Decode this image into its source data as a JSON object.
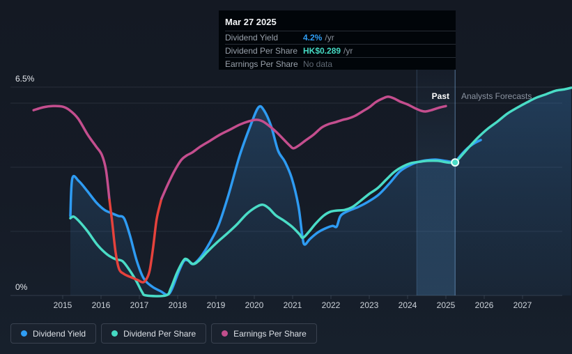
{
  "tooltip": {
    "date": "Mar 27 2025",
    "rows": [
      {
        "label": "Dividend Yield",
        "value": "4.2%",
        "unit": "/yr",
        "color_key": "blue"
      },
      {
        "label": "Dividend Per Share",
        "value": "HK$0.289",
        "unit": "/yr",
        "color_key": "teal"
      },
      {
        "label": "Earnings Per Share",
        "value": "No data",
        "unit": "",
        "color_key": "muted"
      }
    ]
  },
  "zones": {
    "past": "Past",
    "forecast": "Analysts Forecasts"
  },
  "legend": [
    {
      "label": "Dividend Yield",
      "color": "#2f9df3"
    },
    {
      "label": "Dividend Per Share",
      "color": "#45d9c2"
    },
    {
      "label": "Earnings Per Share",
      "color": "#c14e8c"
    }
  ],
  "colors": {
    "dividend_yield": "#2e9bf2",
    "dividend_per_share": "#4adcc6",
    "earnings_per_share": "#c44e8e",
    "earnings_negative": "#e5423c",
    "gridline": "rgba(148,166,190,0.14)",
    "axis_line": "rgba(148,166,190,0.22)",
    "divider": "rgba(130,180,230,0.6)",
    "band_edge": "rgba(120,170,220,0.25)",
    "marker_fill": "#4adcc6",
    "marker_ring": "#eafff9"
  },
  "chart_data": {
    "type": "line",
    "title": "Dividend history and forecast",
    "y_axis": {
      "max_label": "6.5%",
      "min_label": "0%",
      "unit": "percent",
      "range": [
        0,
        6.5
      ]
    },
    "gridlines_pct": [
      6.5,
      6,
      4,
      2,
      0
    ],
    "x_tick_labels": [
      "2015",
      "2016",
      "2017",
      "2018",
      "2019",
      "2020",
      "2021",
      "2022",
      "2023",
      "2024",
      "2025",
      "2026",
      "2027"
    ],
    "x_range_years": [
      2013.6,
      2028.3
    ],
    "highlight_band": {
      "from_year": 2024.24,
      "to_year": 2025.24
    },
    "divider_year": 2025.24,
    "marker": {
      "year": 2025.24,
      "value_pct": 4.15,
      "date": "Mar 27 2025",
      "dividend_yield": "4.2% /yr",
      "dividend_per_share": "HK$0.289 /yr",
      "earnings_per_share": "No data"
    },
    "note": "Earnings Per Share series is drawn on an unlabeled scale; its values below are display-axis units. Red segment = period of negative earnings.",
    "series": [
      {
        "id": "dividend_yield_past",
        "name": "Dividend Yield (past)",
        "color_key": "dividend_yield",
        "points": [
          [
            2015.2,
            2.48
          ],
          [
            2015.25,
            3.65
          ],
          [
            2015.42,
            3.57
          ],
          [
            2015.64,
            3.26
          ],
          [
            2015.87,
            2.91
          ],
          [
            2016.09,
            2.67
          ],
          [
            2016.27,
            2.57
          ],
          [
            2016.45,
            2.48
          ],
          [
            2016.6,
            2.41
          ],
          [
            2016.75,
            1.89
          ],
          [
            2016.93,
            1.09
          ],
          [
            2017.11,
            0.54
          ],
          [
            2017.33,
            0.28
          ],
          [
            2017.56,
            0.13
          ],
          [
            2017.73,
            0.02
          ],
          [
            2017.85,
            0.2
          ],
          [
            2018.02,
            0.72
          ],
          [
            2018.16,
            1.07
          ],
          [
            2018.27,
            1.09
          ],
          [
            2018.4,
            0.98
          ],
          [
            2018.6,
            1.2
          ],
          [
            2018.84,
            1.65
          ],
          [
            2019.07,
            2.2
          ],
          [
            2019.33,
            3.15
          ],
          [
            2019.62,
            4.37
          ],
          [
            2019.91,
            5.33
          ],
          [
            2020.11,
            5.87
          ],
          [
            2020.25,
            5.78
          ],
          [
            2020.44,
            5.28
          ],
          [
            2020.62,
            4.52
          ],
          [
            2020.8,
            4.17
          ],
          [
            2020.98,
            3.65
          ],
          [
            2021.15,
            2.8
          ],
          [
            2021.25,
            1.89
          ],
          [
            2021.31,
            1.59
          ],
          [
            2021.45,
            1.76
          ],
          [
            2021.65,
            1.96
          ],
          [
            2021.85,
            2.09
          ],
          [
            2022.04,
            2.17
          ],
          [
            2022.15,
            2.15
          ],
          [
            2022.25,
            2.48
          ],
          [
            2022.44,
            2.63
          ],
          [
            2022.71,
            2.76
          ],
          [
            2022.98,
            2.93
          ],
          [
            2023.25,
            3.15
          ],
          [
            2023.53,
            3.5
          ],
          [
            2023.8,
            3.87
          ],
          [
            2024.07,
            4.07
          ],
          [
            2024.29,
            4.17
          ],
          [
            2024.51,
            4.22
          ],
          [
            2024.73,
            4.24
          ],
          [
            2024.98,
            4.2
          ],
          [
            2025.24,
            4.15
          ]
        ]
      },
      {
        "id": "dividend_yield_forecast",
        "name": "Dividend Yield (forecast)",
        "color_key": "dividend_yield",
        "points": [
          [
            2025.24,
            4.15
          ],
          [
            2025.4,
            4.39
          ],
          [
            2025.58,
            4.61
          ],
          [
            2025.76,
            4.76
          ],
          [
            2025.91,
            4.85
          ]
        ]
      },
      {
        "id": "dividend_per_share_past",
        "name": "Dividend Per Share (past)",
        "color_key": "dividend_per_share",
        "points": [
          [
            2015.2,
            2.41
          ],
          [
            2015.29,
            2.46
          ],
          [
            2015.44,
            2.3
          ],
          [
            2015.65,
            2.0
          ],
          [
            2015.91,
            1.57
          ],
          [
            2016.16,
            1.28
          ],
          [
            2016.38,
            1.13
          ],
          [
            2016.56,
            1.07
          ],
          [
            2016.75,
            0.78
          ],
          [
            2016.93,
            0.43
          ],
          [
            2017.07,
            0.11
          ],
          [
            2017.18,
            0.0
          ],
          [
            2017.69,
            0.0
          ],
          [
            2017.82,
            0.22
          ],
          [
            2017.98,
            0.7
          ],
          [
            2018.15,
            1.09
          ],
          [
            2018.24,
            1.13
          ],
          [
            2018.4,
            0.98
          ],
          [
            2018.56,
            1.09
          ],
          [
            2018.78,
            1.37
          ],
          [
            2019.04,
            1.67
          ],
          [
            2019.29,
            1.93
          ],
          [
            2019.55,
            2.22
          ],
          [
            2019.8,
            2.54
          ],
          [
            2020.05,
            2.76
          ],
          [
            2020.22,
            2.83
          ],
          [
            2020.38,
            2.72
          ],
          [
            2020.56,
            2.5
          ],
          [
            2020.78,
            2.33
          ],
          [
            2021.0,
            2.13
          ],
          [
            2021.18,
            1.91
          ],
          [
            2021.27,
            1.8
          ],
          [
            2021.42,
            1.98
          ],
          [
            2021.6,
            2.24
          ],
          [
            2021.8,
            2.48
          ],
          [
            2021.98,
            2.61
          ],
          [
            2022.16,
            2.65
          ],
          [
            2022.36,
            2.67
          ],
          [
            2022.56,
            2.76
          ],
          [
            2022.78,
            2.96
          ],
          [
            2023.0,
            3.17
          ],
          [
            2023.22,
            3.35
          ],
          [
            2023.44,
            3.61
          ],
          [
            2023.65,
            3.85
          ],
          [
            2023.87,
            4.02
          ],
          [
            2024.09,
            4.13
          ],
          [
            2024.31,
            4.17
          ],
          [
            2024.53,
            4.2
          ],
          [
            2024.78,
            4.2
          ],
          [
            2025.04,
            4.15
          ],
          [
            2025.24,
            4.13
          ]
        ]
      },
      {
        "id": "dividend_per_share_forecast",
        "name": "Dividend Per Share (forecast)",
        "color_key": "dividend_per_share",
        "points": [
          [
            2025.24,
            4.13
          ],
          [
            2025.4,
            4.35
          ],
          [
            2025.62,
            4.65
          ],
          [
            2025.84,
            4.93
          ],
          [
            2026.09,
            5.2
          ],
          [
            2026.35,
            5.43
          ],
          [
            2026.6,
            5.67
          ],
          [
            2026.85,
            5.85
          ],
          [
            2027.11,
            6.02
          ],
          [
            2027.36,
            6.17
          ],
          [
            2027.62,
            6.28
          ],
          [
            2027.87,
            6.39
          ],
          [
            2028.09,
            6.43
          ],
          [
            2028.27,
            6.48
          ]
        ]
      },
      {
        "id": "eps_past_1",
        "name": "Earnings Per Share (positive)",
        "color_key": "earnings_per_share",
        "points": [
          [
            2014.24,
            5.78
          ],
          [
            2014.49,
            5.87
          ],
          [
            2014.75,
            5.91
          ],
          [
            2015.0,
            5.89
          ],
          [
            2015.18,
            5.78
          ],
          [
            2015.4,
            5.52
          ],
          [
            2015.65,
            5.02
          ],
          [
            2015.87,
            4.65
          ],
          [
            2016.02,
            4.39
          ],
          [
            2016.13,
            3.91
          ],
          [
            2016.22,
            2.98
          ]
        ]
      },
      {
        "id": "eps_negative",
        "name": "Earnings Per Share (negative period)",
        "color_key": "earnings_negative",
        "points": [
          [
            2016.22,
            2.98
          ],
          [
            2016.29,
            2.3
          ],
          [
            2016.38,
            1.35
          ],
          [
            2016.47,
            0.83
          ],
          [
            2016.6,
            0.67
          ],
          [
            2016.78,
            0.57
          ],
          [
            2016.96,
            0.48
          ],
          [
            2017.09,
            0.41
          ],
          [
            2017.18,
            0.5
          ],
          [
            2017.27,
            0.78
          ],
          [
            2017.36,
            1.5
          ],
          [
            2017.45,
            2.37
          ],
          [
            2017.55,
            2.89
          ],
          [
            2017.58,
            3.02
          ]
        ]
      },
      {
        "id": "eps_past_2",
        "name": "Earnings Per Share (positive)",
        "color_key": "earnings_per_share",
        "points": [
          [
            2017.58,
            3.02
          ],
          [
            2017.73,
            3.43
          ],
          [
            2017.91,
            3.87
          ],
          [
            2018.09,
            4.22
          ],
          [
            2018.24,
            4.37
          ],
          [
            2018.38,
            4.46
          ],
          [
            2018.6,
            4.65
          ],
          [
            2018.85,
            4.83
          ],
          [
            2019.11,
            5.02
          ],
          [
            2019.36,
            5.17
          ],
          [
            2019.62,
            5.33
          ],
          [
            2019.85,
            5.43
          ],
          [
            2020.05,
            5.48
          ],
          [
            2020.22,
            5.43
          ],
          [
            2020.42,
            5.26
          ],
          [
            2020.6,
            5.07
          ],
          [
            2020.78,
            4.85
          ],
          [
            2020.93,
            4.67
          ],
          [
            2021.02,
            4.59
          ],
          [
            2021.15,
            4.67
          ],
          [
            2021.33,
            4.83
          ],
          [
            2021.55,
            5.02
          ],
          [
            2021.76,
            5.24
          ],
          [
            2021.95,
            5.35
          ],
          [
            2022.13,
            5.41
          ],
          [
            2022.31,
            5.48
          ],
          [
            2022.45,
            5.52
          ],
          [
            2022.64,
            5.61
          ],
          [
            2022.82,
            5.74
          ],
          [
            2023.0,
            5.87
          ],
          [
            2023.18,
            6.04
          ],
          [
            2023.36,
            6.15
          ],
          [
            2023.49,
            6.2
          ],
          [
            2023.64,
            6.15
          ],
          [
            2023.82,
            6.04
          ],
          [
            2024.0,
            5.96
          ],
          [
            2024.18,
            5.85
          ],
          [
            2024.36,
            5.76
          ],
          [
            2024.47,
            5.74
          ],
          [
            2024.62,
            5.78
          ],
          [
            2024.8,
            5.85
          ],
          [
            2025.0,
            5.91
          ]
        ]
      }
    ],
    "area_series": [
      "dividend_yield_past",
      "dividend_per_share_forecast"
    ],
    "legend_position": "bottom"
  }
}
